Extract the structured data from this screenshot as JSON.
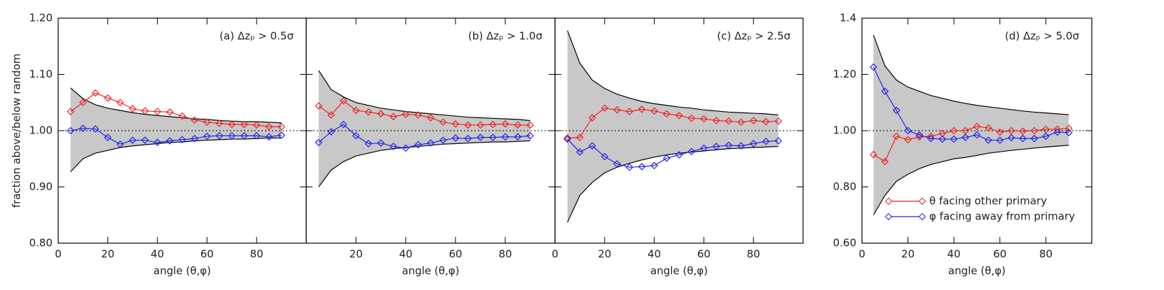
{
  "chart_data": [
    {
      "type": "line",
      "title": "(a) Δzₚ > 0.5σ",
      "xlabel": "angle (θ,φ)",
      "ylabel": "fraction above/below random",
      "x": [
        5,
        10,
        15,
        20,
        25,
        30,
        35,
        40,
        45,
        50,
        55,
        60,
        65,
        70,
        75,
        80,
        85,
        90
      ],
      "xlim": [
        0,
        100
      ],
      "xticks": [
        0,
        20,
        40,
        60,
        80
      ],
      "ylim": [
        0.8,
        1.2
      ],
      "yticks": [
        {
          "value": 0.8,
          "label": "0.80"
        },
        {
          "value": 0.9,
          "label": "0.90"
        },
        {
          "value": 1.0,
          "label": "1.00"
        },
        {
          "value": 1.1,
          "label": "1.10"
        },
        {
          "value": 1.2,
          "label": "1.20"
        }
      ],
      "hline": 1.0,
      "envelope": {
        "color": "#c8c8c8",
        "upper": [
          1.076,
          1.057,
          1.046,
          1.04,
          1.036,
          1.032,
          1.029,
          1.027,
          1.025,
          1.023,
          1.021,
          1.02,
          1.018,
          1.017,
          1.016,
          1.016,
          1.015,
          1.014
        ],
        "lower": [
          0.927,
          0.95,
          0.96,
          0.965,
          0.97,
          0.973,
          0.975,
          0.977,
          0.979,
          0.98,
          0.982,
          0.983,
          0.984,
          0.985,
          0.985,
          0.986,
          0.987,
          0.987
        ]
      },
      "series": [
        {
          "color": "#ee2222",
          "values": [
            1.034,
            1.05,
            1.067,
            1.058,
            1.05,
            1.039,
            1.035,
            1.034,
            1.033,
            1.026,
            1.019,
            1.015,
            1.013,
            1.011,
            1.011,
            1.01,
            1.007,
            1.007
          ]
        },
        {
          "color": "#2222ee",
          "values": [
            1.0,
            1.004,
            1.003,
            0.988,
            0.976,
            0.983,
            0.983,
            0.979,
            0.982,
            0.984,
            0.986,
            0.99,
            0.991,
            0.991,
            0.991,
            0.991,
            0.989,
            0.992
          ]
        }
      ]
    },
    {
      "type": "line",
      "title": "(b) Δzₚ > 1.0σ",
      "xlabel": "angle (θ,φ)",
      "x": [
        5,
        10,
        15,
        20,
        25,
        30,
        35,
        40,
        45,
        50,
        55,
        60,
        65,
        70,
        75,
        80,
        85,
        90
      ],
      "xlim": [
        0,
        100
      ],
      "xticks": [
        20,
        40,
        60,
        80
      ],
      "ylim": [
        0.8,
        1.2
      ],
      "yticks": [
        0.8,
        0.9,
        1.0,
        1.1,
        1.2
      ],
      "ytick_labels": false,
      "hline": 1.0,
      "envelope": {
        "color": "#c8c8c8",
        "upper": [
          1.107,
          1.073,
          1.06,
          1.05,
          1.045,
          1.04,
          1.037,
          1.034,
          1.032,
          1.03,
          1.028,
          1.026,
          1.024,
          1.023,
          1.022,
          1.021,
          1.02,
          1.018
        ],
        "lower": [
          0.9,
          0.93,
          0.945,
          0.955,
          0.96,
          0.965,
          0.968,
          0.97,
          0.972,
          0.974,
          0.976,
          0.977,
          0.978,
          0.979,
          0.98,
          0.98,
          0.981,
          0.982
        ]
      },
      "series": [
        {
          "color": "#ee2222",
          "values": [
            1.044,
            1.028,
            1.053,
            1.036,
            1.033,
            1.03,
            1.025,
            1.029,
            1.028,
            1.023,
            1.015,
            1.012,
            1.01,
            1.01,
            1.011,
            1.012,
            1.01,
            1.01
          ]
        },
        {
          "color": "#2222ee",
          "values": [
            0.979,
            0.998,
            1.011,
            0.991,
            0.977,
            0.978,
            0.972,
            0.969,
            0.975,
            0.978,
            0.983,
            0.987,
            0.986,
            0.988,
            0.988,
            0.989,
            0.989,
            0.991
          ]
        }
      ]
    },
    {
      "type": "line",
      "title": "(c) Δzₚ > 2.5σ",
      "xlabel": "angle (θ,φ)",
      "x": [
        5,
        10,
        15,
        20,
        25,
        30,
        35,
        40,
        45,
        50,
        55,
        60,
        65,
        70,
        75,
        80,
        85,
        90
      ],
      "xlim": [
        0,
        100
      ],
      "xticks": [
        0,
        20,
        40,
        60,
        80
      ],
      "ylim": [
        0.8,
        1.2
      ],
      "yticks": [
        0.8,
        0.9,
        1.0,
        1.1,
        1.2
      ],
      "ytick_labels": false,
      "hline": 1.0,
      "envelope": {
        "color": "#c8c8c8",
        "upper": [
          1.178,
          1.12,
          1.09,
          1.075,
          1.065,
          1.058,
          1.052,
          1.048,
          1.045,
          1.042,
          1.04,
          1.037,
          1.035,
          1.033,
          1.032,
          1.031,
          1.03,
          1.028
        ],
        "lower": [
          0.837,
          0.885,
          0.908,
          0.925,
          0.935,
          0.942,
          0.948,
          0.953,
          0.957,
          0.96,
          0.962,
          0.964,
          0.966,
          0.968,
          0.969,
          0.97,
          0.971,
          0.972
        ]
      },
      "series": [
        {
          "color": "#ee2222",
          "values": [
            0.987,
            0.988,
            1.023,
            1.04,
            1.037,
            1.034,
            1.038,
            1.035,
            1.03,
            1.027,
            1.022,
            1.021,
            1.018,
            1.017,
            1.015,
            1.018,
            1.016,
            1.017
          ]
        },
        {
          "color": "#2222ee",
          "values": [
            0.985,
            0.962,
            0.973,
            0.954,
            0.941,
            0.935,
            0.936,
            0.938,
            0.951,
            0.957,
            0.963,
            0.969,
            0.972,
            0.974,
            0.973,
            0.977,
            0.981,
            0.982
          ]
        }
      ]
    },
    {
      "type": "line",
      "title": "(d) Δzₚ > 5.0σ",
      "xlabel": "angle (θ,φ)",
      "x": [
        5,
        10,
        15,
        20,
        25,
        30,
        35,
        40,
        45,
        50,
        55,
        60,
        65,
        70,
        75,
        80,
        85,
        90
      ],
      "xlim": [
        0,
        100
      ],
      "xticks": [
        0,
        20,
        40,
        60,
        80
      ],
      "ylim": [
        0.6,
        1.4
      ],
      "yticks": [
        {
          "value": 0.6,
          "label": "0.60"
        },
        {
          "value": 0.8,
          "label": "0.80"
        },
        {
          "value": 1.0,
          "label": "1.00"
        },
        {
          "value": 1.2,
          "label": "1.20"
        },
        1.4
      ],
      "hline": 1.0,
      "legend": "lower right",
      "envelope": {
        "color": "#c8c8c8",
        "upper": [
          1.34,
          1.23,
          1.18,
          1.155,
          1.14,
          1.125,
          1.115,
          1.105,
          1.097,
          1.09,
          1.085,
          1.08,
          1.075,
          1.07,
          1.066,
          1.063,
          1.06,
          1.057
        ],
        "lower": [
          0.7,
          0.77,
          0.82,
          0.845,
          0.865,
          0.88,
          0.89,
          0.9,
          0.905,
          0.912,
          0.92,
          0.925,
          0.93,
          0.934,
          0.938,
          0.942,
          0.945,
          0.948
        ]
      },
      "series": [
        {
          "name": "θ facing other primary",
          "color": "#ee2222",
          "values": [
            0.915,
            0.89,
            0.98,
            0.968,
            0.978,
            0.98,
            0.99,
            1.0,
            1.0,
            1.015,
            1.01,
            0.995,
            1.0,
            0.998,
            1.0,
            1.005,
            1.005,
            1.008
          ]
        },
        {
          "name": "φ facing away from primary",
          "color": "#2222ee",
          "values": [
            1.226,
            1.14,
            1.072,
            1.0,
            0.985,
            0.972,
            0.97,
            0.97,
            0.976,
            0.985,
            0.966,
            0.966,
            0.975,
            0.972,
            0.972,
            0.98,
            0.995,
            0.993
          ]
        }
      ]
    }
  ]
}
